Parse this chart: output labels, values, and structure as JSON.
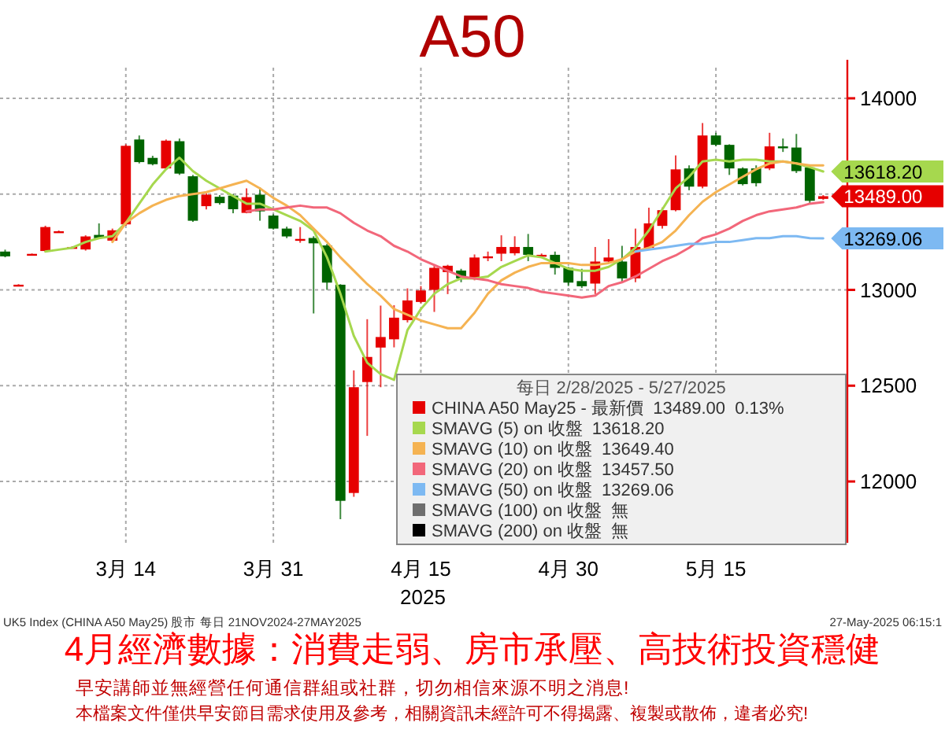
{
  "chart_data": {
    "type": "candlestick",
    "title": "A50",
    "subtitle": "4月經濟數據：消費走弱、房市承壓、高技術投資穩健",
    "xlabel": "2025",
    "categories": [
      null,
      null,
      null,
      null,
      null,
      null,
      null,
      null,
      null,
      "3月 14",
      null,
      null,
      null,
      null,
      null,
      null,
      null,
      null,
      null,
      null,
      "3月 31",
      null,
      null,
      null,
      null,
      null,
      null,
      null,
      null,
      null,
      null,
      "4月 15",
      null,
      null,
      null,
      null,
      null,
      null,
      null,
      null,
      null,
      null,
      "4月 30",
      null,
      null,
      null,
      null,
      null,
      null,
      null,
      null,
      null,
      null,
      "5月 15",
      null,
      null,
      null,
      null,
      null,
      null,
      null,
      null
    ],
    "series": [
      {
        "name": "CHINA A50 May25 - 最新價  13489.00  0.13%",
        "color": "#e60000",
        "ohlc": [
          [
            13200,
            13210,
            13170,
            13175
          ],
          [
            13025,
            13030,
            13022,
            13027
          ],
          [
            13185,
            13190,
            13183,
            13188
          ],
          [
            13203,
            13335,
            13200,
            13328
          ],
          [
            13304,
            13310,
            13300,
            13306
          ],
          [
            13222,
            13228,
            13218,
            13224
          ],
          [
            13211,
            13285,
            13205,
            13279
          ],
          [
            13287,
            13347,
            13265,
            13270
          ],
          [
            13257,
            13320,
            13250,
            13311
          ],
          [
            13342,
            13760,
            13335,
            13752
          ],
          [
            13785,
            13806,
            13660,
            13667
          ],
          [
            13689,
            13700,
            13650,
            13656
          ],
          [
            13634,
            13785,
            13628,
            13779
          ],
          [
            13776,
            13790,
            13600,
            13607
          ],
          [
            13593,
            13600,
            13355,
            13361
          ],
          [
            13437,
            13505,
            13420,
            13497
          ],
          [
            13486,
            13495,
            13445,
            13453
          ],
          [
            13492,
            13500,
            13400,
            13421
          ],
          [
            13402,
            13530,
            13400,
            13484
          ],
          [
            13497,
            13536,
            13361,
            13410
          ],
          [
            13388,
            13395,
            13315,
            13320
          ],
          [
            13320,
            13330,
            13270,
            13279
          ],
          [
            13262,
            13328,
            13246,
            13266
          ],
          [
            13271,
            13280,
            12877,
            13243
          ],
          [
            13232,
            13240,
            13000,
            13038
          ],
          [
            13027,
            13030,
            11803,
            11899
          ],
          [
            11940,
            12580,
            11920,
            12492
          ],
          [
            12519,
            12847,
            12238,
            12650
          ],
          [
            12699,
            12918,
            12492,
            12754
          ],
          [
            12742,
            12920,
            12700,
            12855
          ],
          [
            12842,
            13008,
            12830,
            12945
          ],
          [
            12937,
            13020,
            12930,
            12997
          ],
          [
            13000,
            13125,
            12885,
            13115
          ],
          [
            13093,
            13131,
            12978,
            13126
          ],
          [
            13101,
            13110,
            13040,
            13060
          ],
          [
            13060,
            13185,
            13050,
            13169
          ],
          [
            13172,
            13200,
            13150,
            13175
          ],
          [
            13189,
            13285,
            13150,
            13224
          ],
          [
            13191,
            13280,
            13180,
            13224
          ],
          [
            13224,
            13292,
            13150,
            13183
          ],
          [
            13180,
            13190,
            13175,
            13183
          ],
          [
            13183,
            13200,
            13080,
            13115
          ],
          [
            13115,
            13120,
            13020,
            13038
          ],
          [
            13046,
            13110,
            13010,
            13019
          ],
          [
            13033,
            13224,
            12978,
            13148
          ],
          [
            13148,
            13265,
            13140,
            13169
          ],
          [
            13148,
            13230,
            13040,
            13060
          ],
          [
            13060,
            13320,
            13040,
            13224
          ],
          [
            13219,
            13429,
            13210,
            13347
          ],
          [
            13334,
            13430,
            13320,
            13416
          ],
          [
            13416,
            13702,
            13410,
            13629
          ],
          [
            13634,
            13650,
            13520,
            13539
          ],
          [
            13539,
            13871,
            13530,
            13806
          ],
          [
            13806,
            13820,
            13750,
            13757
          ],
          [
            13757,
            13760,
            13600,
            13634
          ],
          [
            13634,
            13640,
            13545,
            13552
          ],
          [
            13634,
            13650,
            13540,
            13557
          ],
          [
            13634,
            13820,
            13625,
            13749
          ],
          [
            13749,
            13790,
            13720,
            13740
          ],
          [
            13743,
            13814,
            13610,
            13620
          ],
          [
            13639,
            13650,
            13450,
            13465
          ],
          [
            13475,
            13495,
            13470,
            13489
          ]
        ],
        "colors": [
          "#006400",
          "#e60000",
          "#e60000",
          "#e60000",
          "#e60000",
          "#e60000",
          "#e60000",
          "#006400",
          "#e60000",
          "#e60000",
          "#006400",
          "#006400",
          "#e60000",
          "#006400",
          "#006400",
          "#e60000",
          "#006400",
          "#006400",
          "#e60000",
          "#006400",
          "#006400",
          "#006400",
          "#e60000",
          "#006400",
          "#006400",
          "#006400",
          "#e60000",
          "#e60000",
          "#e60000",
          "#e60000",
          "#e60000",
          "#e60000",
          "#e60000",
          "#e60000",
          "#006400",
          "#e60000",
          "#e60000",
          "#e60000",
          "#e60000",
          "#006400",
          "#e60000",
          "#006400",
          "#006400",
          "#006400",
          "#e60000",
          "#e60000",
          "#006400",
          "#e60000",
          "#e60000",
          "#e60000",
          "#e60000",
          "#006400",
          "#e60000",
          "#006400",
          "#006400",
          "#006400",
          "#006400",
          "#e60000",
          "#006400",
          "#006400",
          "#006400",
          "#e60000"
        ],
        "value_labels": [
          null,
          null,
          null,
          null,
          null,
          null,
          null,
          null,
          null,
          null,
          null,
          null,
          null,
          null,
          null,
          null,
          null,
          null,
          null,
          null,
          null,
          null,
          null,
          null,
          null,
          null,
          null,
          null,
          null,
          null,
          null,
          null,
          null,
          null,
          null,
          null,
          null,
          null,
          null,
          null,
          null,
          null,
          null,
          null,
          null,
          null,
          null,
          null,
          null,
          null,
          null,
          null,
          null,
          null,
          null,
          null,
          null,
          null,
          null,
          null,
          null,
          "13489.00"
        ]
      },
      {
        "type": "line",
        "name": "SMAVG (5) on 收盤  13618.20",
        "color": "#a6d84e",
        "values": [
          null,
          null,
          null,
          13200,
          13210,
          13220,
          13250,
          13270,
          13280,
          13350,
          13450,
          13550,
          13630,
          13690,
          13620,
          13570,
          13530,
          13490,
          13450,
          13450,
          13420,
          13390,
          13360,
          13310,
          13170,
          12980,
          12760,
          12620,
          12560,
          12530,
          12790,
          12900,
          12980,
          13030,
          13060,
          13060,
          13070,
          13120,
          13150,
          13180,
          13170,
          13140,
          13110,
          13100,
          13100,
          13120,
          13160,
          13220,
          13310,
          13420,
          13530,
          13590,
          13670,
          13680,
          13670,
          13680,
          13680,
          13670,
          13670,
          13660,
          13640,
          13618.2
        ],
        "value_labels": [
          null,
          null,
          null,
          null,
          null,
          null,
          null,
          null,
          null,
          null,
          null,
          null,
          null,
          null,
          null,
          null,
          null,
          null,
          null,
          null,
          null,
          null,
          null,
          null,
          null,
          null,
          null,
          null,
          null,
          null,
          null,
          null,
          null,
          null,
          null,
          null,
          null,
          null,
          null,
          null,
          null,
          null,
          null,
          null,
          null,
          null,
          null,
          null,
          null,
          null,
          null,
          null,
          null,
          null,
          null,
          null,
          null,
          null,
          null,
          null,
          null,
          "13618.20"
        ]
      },
      {
        "type": "line",
        "name": "SMAVG (10) on 收盤  13649.40",
        "color": "#f5b352",
        "values": [
          null,
          null,
          null,
          null,
          null,
          null,
          null,
          null,
          13250,
          13350,
          13400,
          13440,
          13470,
          13490,
          13500,
          13510,
          13530,
          13550,
          13570,
          13530,
          13480,
          13440,
          13390,
          13320,
          13250,
          13170,
          13100,
          13030,
          12970,
          12900,
          12870,
          12840,
          12820,
          12800,
          12800,
          12880,
          12980,
          13050,
          13090,
          13120,
          13140,
          13140,
          13140,
          13130,
          13130,
          13140,
          13160,
          13200,
          13220,
          13250,
          13310,
          13390,
          13460,
          13510,
          13550,
          13590,
          13630,
          13660,
          13670,
          13660,
          13650,
          13649.4
        ]
      },
      {
        "type": "line",
        "name": "SMAVG (20) on 收盤  13457.50",
        "color": "#f2677a",
        "values": [
          null,
          null,
          null,
          null,
          null,
          null,
          null,
          null,
          null,
          null,
          null,
          null,
          null,
          null,
          null,
          null,
          null,
          null,
          13410,
          13420,
          13420,
          13430,
          13440,
          13430,
          13430,
          13400,
          13350,
          13310,
          13280,
          13230,
          13200,
          13160,
          13130,
          13100,
          13070,
          13060,
          13050,
          13030,
          13020,
          13010,
          12990,
          12980,
          12970,
          12960,
          12970,
          13020,
          13040,
          13070,
          13110,
          13150,
          13180,
          13220,
          13270,
          13290,
          13320,
          13360,
          13390,
          13410,
          13420,
          13430,
          13450,
          13457.5
        ]
      },
      {
        "type": "line",
        "name": "SMAVG (50) on 收盤  13269.06",
        "color": "#7db9f2",
        "values": [
          null,
          null,
          null,
          null,
          null,
          null,
          null,
          null,
          null,
          null,
          null,
          null,
          null,
          null,
          null,
          null,
          null,
          null,
          null,
          null,
          null,
          null,
          null,
          null,
          null,
          null,
          null,
          null,
          null,
          null,
          null,
          null,
          null,
          null,
          null,
          null,
          null,
          null,
          null,
          null,
          null,
          null,
          null,
          null,
          null,
          null,
          null,
          13200,
          13210,
          13220,
          13230,
          13240,
          13240,
          13250,
          13250,
          13260,
          13270,
          13270,
          13280,
          13280,
          13270,
          13269.06
        ],
        "value_labels": [
          null,
          null,
          null,
          null,
          null,
          null,
          null,
          null,
          null,
          null,
          null,
          null,
          null,
          null,
          null,
          null,
          null,
          null,
          null,
          null,
          null,
          null,
          null,
          null,
          null,
          null,
          null,
          null,
          null,
          null,
          null,
          null,
          null,
          null,
          null,
          null,
          null,
          null,
          null,
          null,
          null,
          null,
          null,
          null,
          null,
          null,
          null,
          null,
          null,
          null,
          null,
          null,
          null,
          null,
          null,
          null,
          null,
          null,
          null,
          null,
          null,
          "13269.06"
        ]
      },
      {
        "type": "line",
        "name": "SMAVG (100) on 收盤  無",
        "color": "#6e6e6e",
        "values": [
          null,
          null,
          null,
          null,
          null,
          null,
          null,
          null,
          null,
          null,
          null,
          null,
          null,
          null,
          null,
          null,
          null,
          null,
          null,
          null,
          null,
          null,
          null,
          null,
          null,
          null,
          null,
          null,
          null,
          null,
          null,
          null,
          null,
          null,
          null,
          null,
          null,
          null,
          null,
          null,
          null,
          null,
          null,
          null,
          null,
          null,
          null,
          null,
          null,
          null,
          null,
          null,
          null,
          null,
          null,
          null,
          null,
          null,
          null,
          null,
          null,
          null
        ]
      },
      {
        "type": "line",
        "name": "SMAVG (200) on 收盤  無",
        "color": "#000000",
        "values": [
          null,
          null,
          null,
          null,
          null,
          null,
          null,
          null,
          null,
          null,
          null,
          null,
          null,
          null,
          null,
          null,
          null,
          null,
          null,
          null,
          null,
          null,
          null,
          null,
          null,
          null,
          null,
          null,
          null,
          null,
          null,
          null,
          null,
          null,
          null,
          null,
          null,
          null,
          null,
          null,
          null,
          null,
          null,
          null,
          null,
          null,
          null,
          null,
          null,
          null,
          null,
          null,
          null,
          null,
          null,
          null,
          null,
          null,
          null,
          null,
          null,
          null
        ]
      }
    ],
    "ylim": [
      11680,
      14160
    ],
    "yticks": [
      12000,
      12500,
      13000,
      {
        "value": 13500,
        "label": null
      },
      14000
    ],
    "grid": true,
    "legend": "bottom right",
    "legend_title": "每日 2/28/2025 - 5/27/2025",
    "annotations": [
      "UK5 Index (CHINA A50 May25) 股市 每日 21NOV2024-27MAY2025",
      "27-May-2025 06:15:1",
      "早安講師並無經營任何通信群組或社群，切勿相信來源不明之消息!",
      "本檔案文件僅供早安節目需求使用及參考，相關資訊未經許可不得揭露、複製或散佈，違者必究!"
    ]
  }
}
